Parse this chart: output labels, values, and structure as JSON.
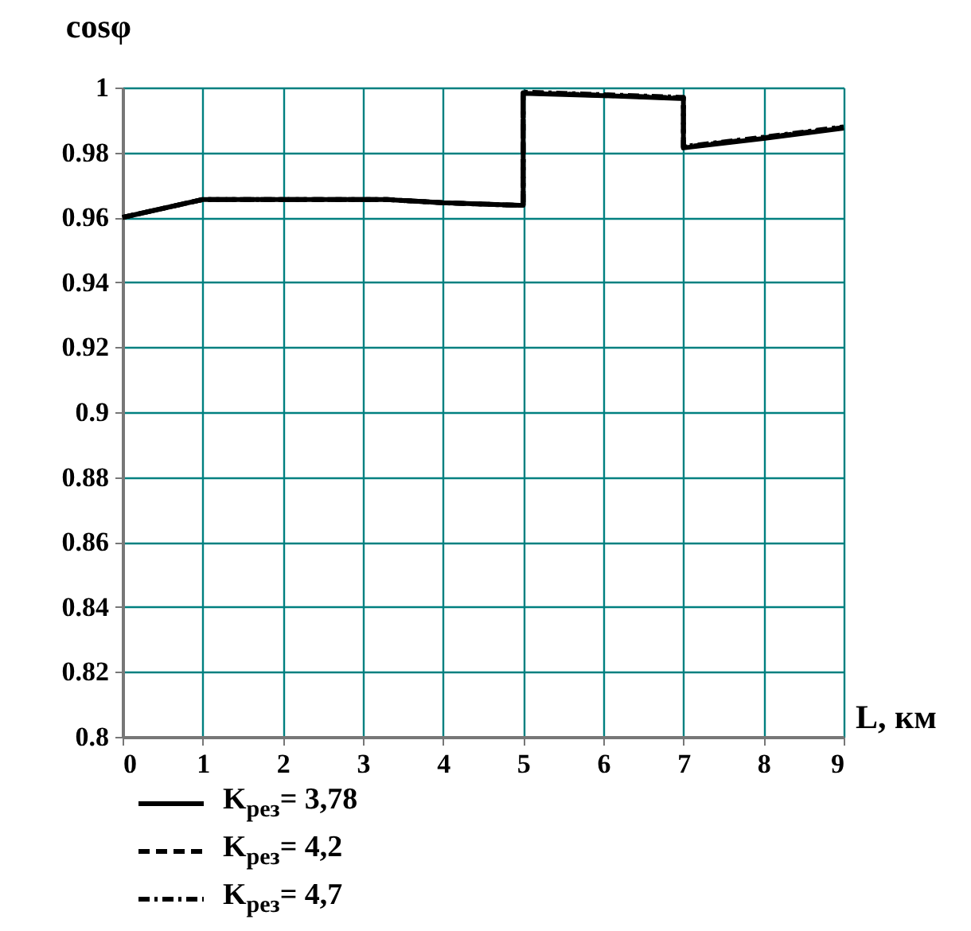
{
  "chart_data": {
    "type": "line",
    "xlabel": "L, км",
    "ylabel": "cosφ",
    "x": [
      0,
      1,
      2,
      3.3,
      4,
      4.95,
      5,
      5,
      6,
      6.95,
      7,
      7,
      8,
      9
    ],
    "xlim": [
      0,
      9
    ],
    "xticks": [
      0,
      1,
      2,
      3,
      4,
      5,
      6,
      7,
      8,
      9
    ],
    "ylim": [
      0.8,
      1
    ],
    "yticks": [
      0.8,
      0.82,
      0.84,
      0.86,
      0.88,
      0.9,
      0.92,
      0.94,
      0.96,
      0.98,
      1
    ],
    "grid": true,
    "legend": "bottom left",
    "series": [
      {
        "name": "K$_{рез}$= 3,78",
        "color": "#000000",
        "line_style": "solid",
        "values": [
          0.96,
          0.9655,
          0.9655,
          0.9655,
          0.9645,
          0.9637,
          0.9637,
          0.9982,
          0.9975,
          0.9966,
          0.9966,
          0.9814,
          0.9843,
          0.9875
        ]
      },
      {
        "name": "K$_{рез}$= 4,2",
        "color": "#000000",
        "line_style": "dashed",
        "values": [
          0.96,
          0.9655,
          0.9655,
          0.9655,
          0.9645,
          0.9637,
          0.9637,
          0.9984,
          0.9976,
          0.9968,
          0.9968,
          0.9816,
          0.9845,
          0.9877
        ]
      },
      {
        "name": "K$_{рез}$= 4,7",
        "color": "#000000",
        "line_style": "dotted",
        "values": [
          0.96,
          0.9655,
          0.9655,
          0.9655,
          0.9645,
          0.9637,
          0.9637,
          0.9986,
          0.9978,
          0.997,
          0.997,
          0.9818,
          0.9847,
          0.9879
        ]
      }
    ]
  }
}
